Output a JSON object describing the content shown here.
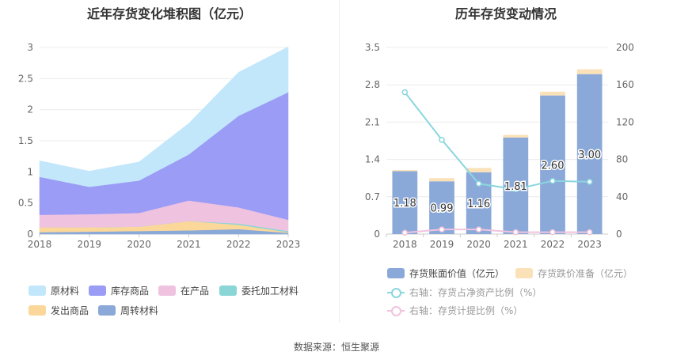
{
  "left_title": "近年存货变化堆积图（亿元）",
  "right_title": "历年存货变动情况",
  "source": "数据来源：恒生聚源",
  "chart_data": [
    {
      "type": "area",
      "title": "近年存货变化堆积图（亿元）",
      "stacked": true,
      "x": [
        "2018",
        "2019",
        "2020",
        "2021",
        "2022",
        "2023"
      ],
      "ylim": [
        0,
        3
      ],
      "yticks": [
        "0",
        "0.5",
        "1",
        "1.5",
        "2",
        "2.5",
        "3"
      ],
      "grid": true,
      "legend_placement": "bottom",
      "series": [
        {
          "name": "周转材料",
          "color": "#8aa9d8",
          "values": [
            0.03,
            0.04,
            0.05,
            0.06,
            0.08,
            0.02
          ]
        },
        {
          "name": "发出商品",
          "color": "#fbd79a",
          "values": [
            0.08,
            0.07,
            0.07,
            0.15,
            0.07,
            0.01
          ]
        },
        {
          "name": "委托加工材料",
          "color": "#8ad6d6",
          "values": [
            0.0,
            0.0,
            0.0,
            0.0,
            0.02,
            0.02
          ]
        },
        {
          "name": "在产品",
          "color": "#efc3e0",
          "values": [
            0.2,
            0.21,
            0.22,
            0.33,
            0.26,
            0.18
          ]
        },
        {
          "name": "库存商品",
          "color": "#9b9cf5",
          "values": [
            0.61,
            0.44,
            0.52,
            0.74,
            1.47,
            2.05
          ]
        },
        {
          "name": "原材料",
          "color": "#c2e7fa",
          "values": [
            0.26,
            0.25,
            0.3,
            0.5,
            0.7,
            0.73
          ]
        }
      ],
      "legend_order": [
        "原材料",
        "库存商品",
        "在产品",
        "委托加工材料",
        "发出商品",
        "周转材料"
      ]
    },
    {
      "type": "bar",
      "title": "历年存货变动情况",
      "stacked": true,
      "categories": [
        "2018",
        "2019",
        "2020",
        "2021",
        "2022",
        "2023"
      ],
      "ylim": [
        0,
        3.5
      ],
      "yticks": [
        "0",
        "0.7",
        "1.4",
        "2.1",
        "2.8",
        "3.5"
      ],
      "y2lim": [
        0,
        200
      ],
      "y2ticks": [
        "0",
        "40",
        "80",
        "120",
        "160",
        "200"
      ],
      "grid": true,
      "legend_placement": "bottom",
      "series": [
        {
          "name": "存货账面价值（亿元）",
          "color": "#8aa9d8",
          "values": [
            1.18,
            0.99,
            1.16,
            1.81,
            2.6,
            3.0
          ],
          "labels": [
            "1.18",
            "0.99",
            "1.16",
            "1.81",
            "2.60",
            "3.00"
          ]
        },
        {
          "name": "存货跌价准备（亿元）",
          "color": "#fbe1b8",
          "values": [
            0.02,
            0.06,
            0.08,
            0.05,
            0.07,
            0.09
          ]
        }
      ],
      "lines": [
        {
          "name": "右轴：存货占净资产比例（%）",
          "color": "#8ad6de",
          "axis": "right",
          "values": [
            152,
            101,
            54,
            48,
            57,
            56
          ]
        },
        {
          "name": "右轴：存货计提比例（%）",
          "color": "#f0c3de",
          "axis": "right",
          "values": [
            1.5,
            5,
            5,
            2,
            2,
            2
          ]
        }
      ]
    }
  ]
}
